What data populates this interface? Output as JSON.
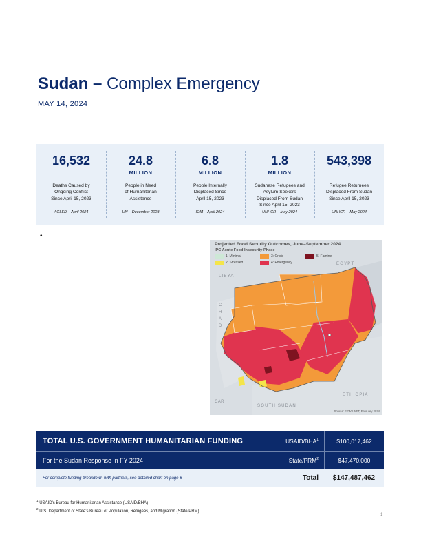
{
  "header": {
    "title_bold": "Sudan –",
    "title_light": "Complex Emergency",
    "date": "MAY 14, 2024"
  },
  "stats": [
    {
      "number": "16,532",
      "unit": "",
      "description": "Deaths Caused by\nOngoing Conflict\nSince April 15, 2023",
      "source": "ACLED – April 2024"
    },
    {
      "number": "24.8",
      "unit": "MILLION",
      "description": "People in Need\nof Humanitarian\nAssistance",
      "source": "UN – December 2023"
    },
    {
      "number": "6.8",
      "unit": "MILLION",
      "description": "People Internally\nDisplaced Since\nApril 15, 2023",
      "source": "IOM – April 2024"
    },
    {
      "number": "1.8",
      "unit": "MILLION",
      "description": "Sudanese Refugees and\nAsylum-Seekers\nDisplaced From Sudan\nSince April 15, 2023",
      "source": "UNHCR – May 2024"
    },
    {
      "number": "543,398",
      "unit": "",
      "description": "Refugee Returnees\nDisplaced From Sudan\nSince April 15, 2023",
      "source": "UNHCR – May 2024"
    }
  ],
  "bullet": "•",
  "map": {
    "title": "Projected Food Security Outcomes, June–September 2024",
    "subtitle": "IPC Acute Food Insecurity Phase",
    "legend": [
      {
        "label": "1: Minimal",
        "color": "#cde8d6"
      },
      {
        "label": "2: Stressed",
        "color": "#f4e54a"
      },
      {
        "label": "3: Crisis",
        "color": "#f39a3a"
      },
      {
        "label": "4: Emergency",
        "color": "#e0344f"
      },
      {
        "label": "5: Famine",
        "color": "#7e1320"
      }
    ],
    "labels": {
      "libya": "LIBYA",
      "egypt": "EGYPT",
      "chad": "CHAD",
      "ethiopia": "ETHIOPIA",
      "south_sudan": "SOUTH SUDAN",
      "car": "CAR"
    },
    "source": "Source: FEWS NET, February 2024"
  },
  "funding": {
    "heading": "TOTAL U.S. GOVERNMENT HUMANITARIAN FUNDING",
    "subheading": "For the Sudan Response in FY 2024",
    "rows": [
      {
        "agency": "USAID/BHA",
        "sup": "1",
        "amount": "$100,017,462"
      },
      {
        "agency": "State/PRM",
        "sup": "2",
        "amount": "$47,470,000"
      }
    ],
    "note": "For complete funding breakdown with partners, see detailed chart on page 8",
    "total_label": "Total",
    "total_amount": "$147,487,462"
  },
  "footnotes": [
    {
      "sup": "1",
      "text": "USAID’s Bureau for Humanitarian Assistance (USAID/BHA)"
    },
    {
      "sup": "2",
      "text": "U.S. Department of State’s Bureau of Population, Refugees, and Migration (State/PRM)"
    }
  ],
  "page_number": "1",
  "colors": {
    "navy": "#0c2a6b",
    "panel": "#e9f0f8"
  }
}
